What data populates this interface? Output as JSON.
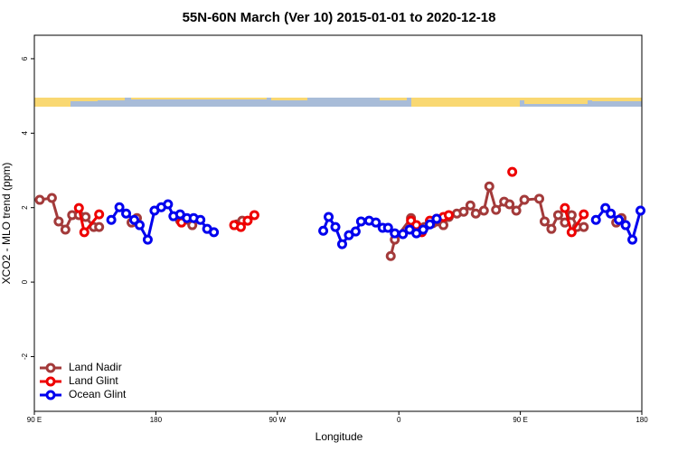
{
  "chart_data": {
    "type": "line",
    "title": "55N-60N March (Ver 10)   2015-01-01 to 2020-12-18",
    "xlabel": "Longitude",
    "ylabel": "XCO2 - MLO trend (ppm)",
    "xlim": [
      90,
      540
    ],
    "ylim": [
      -3.47,
      6.63
    ],
    "xticks": [
      {
        "value": 90,
        "label": "90 E"
      },
      180,
      {
        "value": 270,
        "label": "90 W"
      },
      {
        "value": 360,
        "label": "0"
      },
      {
        "value": 450,
        "label": "90 E"
      },
      {
        "value": 540,
        "label": "180"
      }
    ],
    "yticks": [
      -2,
      0,
      2,
      4,
      6
    ],
    "legend": "bottom-left",
    "series": [
      {
        "name": "Land Nadir",
        "color": "#a33a3a",
        "x": [
          94,
          103,
          108,
          113,
          118,
          123,
          128,
          134,
          138,
          null,
          162,
          166,
          null,
          198,
          207,
          null,
          240,
          244,
          null,
          354,
          357,
          369,
          374,
          379,
          385,
          388,
          393,
          397,
          403,
          408,
          413,
          417,
          423,
          427,
          432,
          438,
          442,
          447,
          453,
          464,
          468,
          473,
          478,
          483,
          488,
          492,
          497,
          null,
          521,
          525
        ],
        "values": [
          2.21,
          2.26,
          1.63,
          1.41,
          1.8,
          1.8,
          1.75,
          1.48,
          1.48,
          null,
          1.6,
          1.72,
          null,
          1.65,
          1.53,
          null,
          1.55,
          1.65,
          null,
          0.7,
          1.14,
          1.72,
          1.48,
          1.48,
          1.58,
          1.63,
          1.53,
          1.75,
          1.84,
          1.89,
          2.06,
          1.84,
          1.92,
          2.57,
          1.94,
          2.16,
          2.09,
          1.92,
          2.21,
          2.24,
          1.63,
          1.43,
          1.8,
          1.6,
          1.8,
          1.48,
          1.48,
          null,
          1.6,
          1.72
        ]
      },
      {
        "name": "Land Glint",
        "color": "#ee0000",
        "x": [
          123,
          127,
          138,
          null,
          199,
          null,
          238,
          243,
          248,
          253,
          null,
          369,
          373,
          377,
          383,
          388,
          393,
          397,
          null,
          444,
          null,
          483,
          488,
          497
        ],
        "values": [
          1.99,
          1.34,
          1.82,
          null,
          1.6,
          null,
          1.53,
          1.48,
          1.65,
          1.8,
          null,
          1.65,
          1.53,
          1.34,
          1.65,
          1.7,
          1.75,
          1.8,
          null,
          2.96,
          null,
          1.99,
          1.34,
          1.82
        ]
      },
      {
        "name": "Ocean Glint",
        "color": "#0000ee",
        "x": [
          147,
          153,
          158,
          164,
          168,
          174,
          179,
          184,
          189,
          193,
          198,
          203,
          208,
          213,
          218,
          223,
          null,
          304,
          308,
          313,
          318,
          323,
          328,
          332,
          338,
          343,
          348,
          352,
          357,
          363,
          368,
          373,
          378,
          383,
          388,
          null,
          506,
          513,
          517,
          523,
          528,
          533,
          539
        ],
        "values": [
          1.67,
          2.01,
          1.84,
          1.67,
          1.53,
          1.14,
          1.92,
          2.01,
          2.09,
          1.77,
          1.82,
          1.72,
          1.72,
          1.67,
          1.43,
          1.34,
          null,
          1.38,
          1.75,
          1.48,
          1.02,
          1.26,
          1.36,
          1.63,
          1.65,
          1.6,
          1.46,
          1.46,
          1.31,
          1.29,
          1.41,
          1.31,
          1.41,
          1.55,
          1.7,
          null,
          1.67,
          1.99,
          1.84,
          1.67,
          1.53,
          1.14,
          1.92
        ]
      }
    ]
  }
}
